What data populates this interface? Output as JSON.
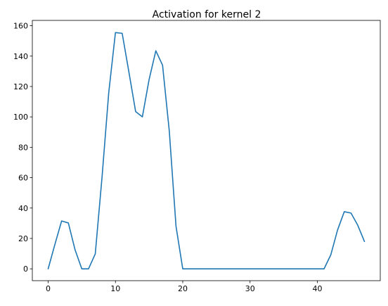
{
  "chart_data": {
    "type": "line",
    "title": "Activation for kernel 2",
    "xlabel": "",
    "ylabel": "",
    "xlim": [
      -2.35,
      49.35
    ],
    "ylim": [
      -7.8,
      163.5
    ],
    "xticks": [
      0,
      10,
      20,
      30,
      40
    ],
    "yticks": [
      0,
      20,
      40,
      60,
      80,
      100,
      120,
      140,
      160
    ],
    "grid": false,
    "series": [
      {
        "color": "#1f77b4",
        "x": [
          0,
          1,
          2,
          3,
          4,
          5,
          6,
          7,
          8,
          9,
          10,
          11,
          12,
          13,
          14,
          15,
          16,
          17,
          18,
          19,
          20,
          21,
          22,
          23,
          24,
          25,
          26,
          27,
          28,
          29,
          30,
          31,
          32,
          33,
          34,
          35,
          36,
          37,
          38,
          39,
          40,
          41,
          42,
          43,
          44,
          45,
          46,
          47
        ],
        "values": [
          0,
          16,
          31.5,
          30.2,
          12.5,
          0,
          0,
          9.8,
          60,
          115.8,
          155.5,
          155,
          129.5,
          103.5,
          100,
          124.6,
          143.5,
          134,
          90.7,
          28,
          0,
          0,
          0,
          0,
          0,
          0,
          0,
          0,
          0,
          0,
          0,
          0,
          0,
          0,
          0,
          0,
          0,
          0,
          0,
          0,
          0,
          0,
          9.2,
          25.5,
          37.6,
          36.7,
          28.7,
          18
        ]
      }
    ]
  }
}
